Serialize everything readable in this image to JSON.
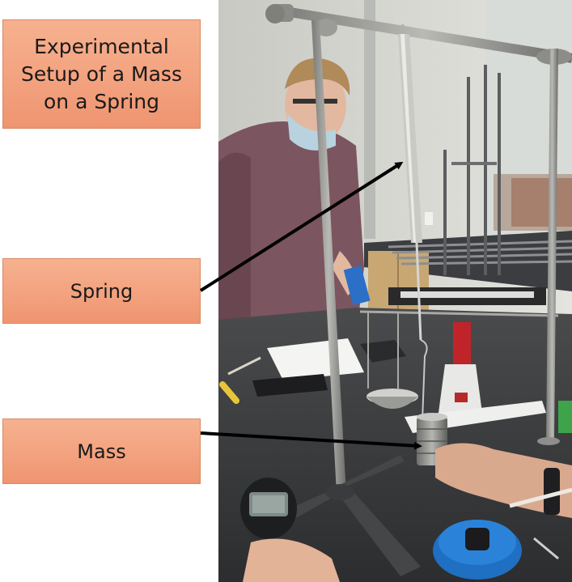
{
  "labels": {
    "title": "Experimental Setup of a Mass on a Spring",
    "spring": "Spring",
    "mass": "Mass"
  },
  "colors": {
    "label_fill": "#f3a27f",
    "arrow": "#000000"
  }
}
